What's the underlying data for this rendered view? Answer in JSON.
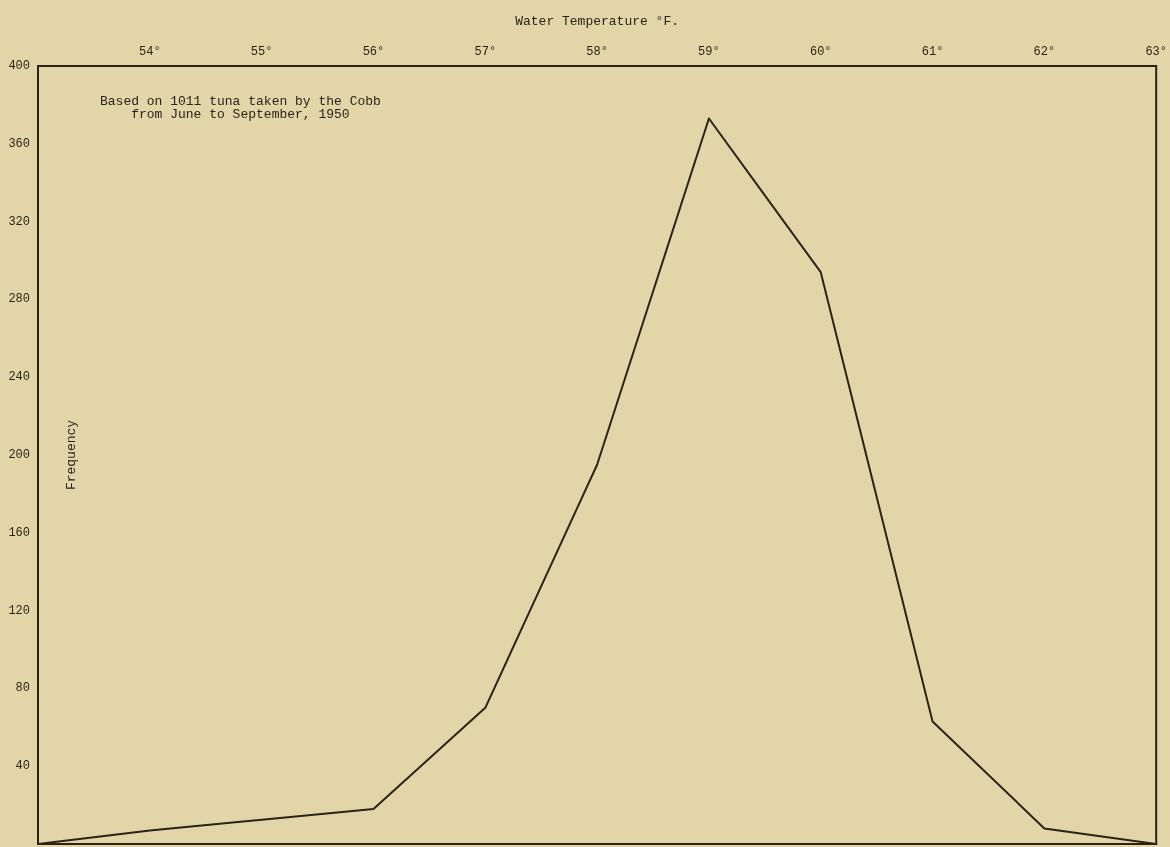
{
  "chart_data": {
    "type": "line",
    "xlabel": "Water Temperature °F.",
    "ylabel": "Frequency",
    "annotations": [
      "Based on 1011 tuna taken by the Cobb\nfrom June to September, 1950"
    ],
    "x": [
      53,
      54,
      56,
      57,
      58,
      59,
      60,
      61,
      62,
      63
    ],
    "series": [
      {
        "color": "#2a2418",
        "values": [
          0,
          7,
          18,
          70,
          195,
          373,
          294,
          63,
          8,
          0
        ]
      }
    ],
    "xlim": [
      53,
      63
    ],
    "xticks": [
      {
        "value": 54,
        "label": "54°"
      },
      {
        "value": 55,
        "label": "55°"
      },
      {
        "value": 56,
        "label": "56°"
      },
      {
        "value": 57,
        "label": "57°"
      },
      {
        "value": 58,
        "label": "58°"
      },
      {
        "value": 59,
        "label": "59°"
      },
      {
        "value": 60,
        "label": "60°"
      },
      {
        "value": 61,
        "label": "61°"
      },
      {
        "value": 62,
        "label": "62°"
      },
      {
        "value": 63,
        "label": "63°"
      }
    ],
    "ylim": [
      0,
      400
    ],
    "yticks": [
      40,
      80,
      120,
      160,
      200,
      240,
      280,
      320,
      360,
      400
    ],
    "grid": false,
    "marker": "none",
    "line_style": "solid"
  }
}
